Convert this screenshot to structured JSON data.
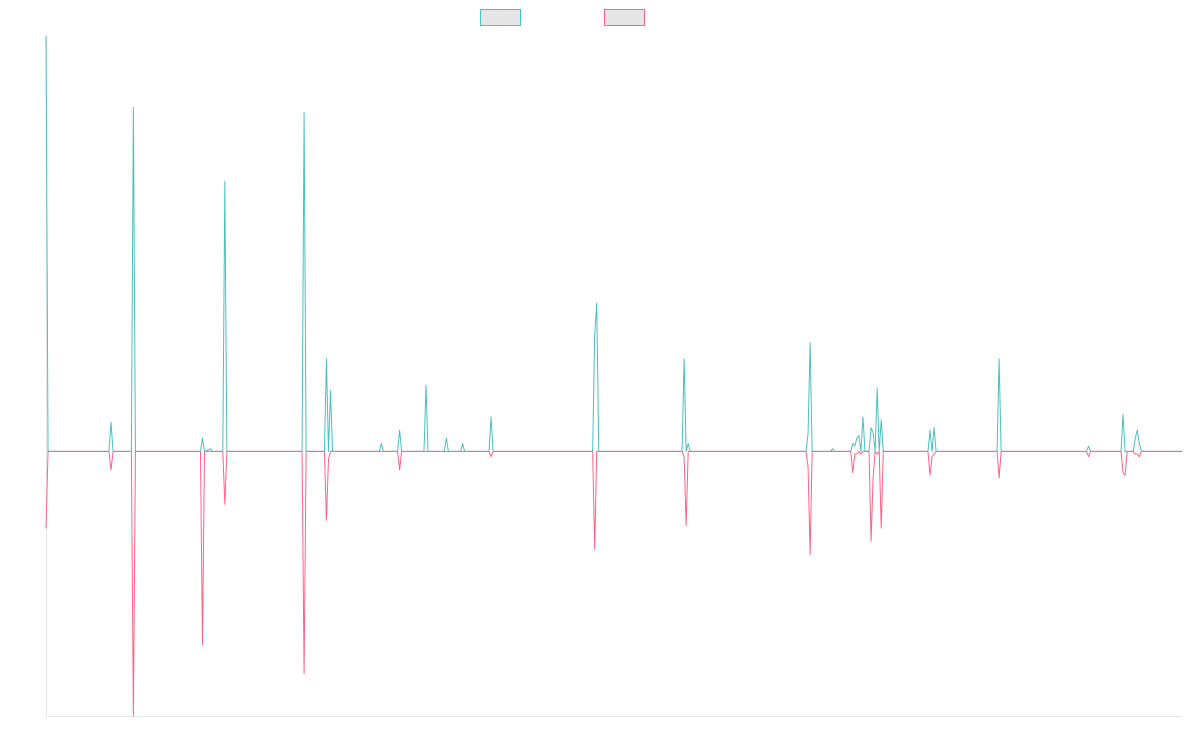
{
  "chart_data": {
    "type": "line",
    "title": "",
    "xlabel": "",
    "ylabel": "",
    "grid": false,
    "legend_placement": "top-center",
    "colors": {
      "teal": "#4bc0c0",
      "pink": "#ff6384",
      "legend_fill": "#e6e6e6",
      "axis": "#e6e6e6"
    },
    "x": [
      0,
      1,
      2,
      3,
      4,
      5,
      6,
      7,
      8,
      9,
      10,
      11,
      12,
      13,
      14,
      15,
      16,
      17,
      18,
      19,
      20,
      21,
      22,
      23,
      24,
      25,
      26,
      27,
      28,
      29,
      30,
      31,
      32,
      33,
      34,
      35,
      36,
      37,
      38,
      39,
      40,
      41,
      42,
      43,
      44,
      45,
      46,
      47,
      48,
      49,
      50,
      51,
      52,
      53,
      54,
      55,
      56,
      57,
      58,
      59,
      60,
      61,
      62,
      63,
      64,
      65,
      66,
      67,
      68,
      69,
      70,
      71,
      72,
      73,
      74,
      75,
      76,
      77,
      78,
      79,
      80,
      81,
      82,
      83,
      84,
      85,
      86,
      87,
      88,
      89,
      90,
      91,
      92,
      93,
      94,
      95,
      96,
      97,
      98,
      99,
      100,
      101,
      102,
      103,
      104,
      105,
      106,
      107,
      108,
      109,
      110,
      111,
      112,
      113,
      114,
      115,
      116,
      117,
      118,
      119,
      120,
      121,
      122,
      123,
      124,
      125,
      126,
      127,
      128,
      129,
      130,
      131,
      132,
      133,
      134,
      135,
      136,
      137,
      138,
      139,
      140,
      141,
      142,
      143,
      144,
      145,
      146,
      147,
      148,
      149,
      150,
      151,
      152,
      153,
      154,
      155,
      156,
      157,
      158,
      159,
      160,
      161,
      162,
      163,
      164,
      165,
      166,
      167,
      168,
      169,
      170,
      171,
      172,
      173,
      174,
      175,
      176,
      177,
      178,
      179,
      180,
      181,
      182,
      183,
      184,
      185,
      186,
      187,
      188,
      189,
      190,
      191,
      192,
      193,
      194,
      195,
      196,
      197,
      198,
      199,
      200,
      201,
      202,
      203,
      204,
      205,
      206,
      207,
      208,
      209,
      210,
      211,
      212,
      213,
      214,
      215,
      216,
      217,
      218,
      219,
      220,
      221,
      222,
      223,
      224,
      225,
      226,
      227,
      228,
      229,
      230,
      231,
      232,
      233,
      234,
      235,
      236,
      237,
      238,
      239,
      240,
      241,
      242,
      243,
      244,
      245,
      246,
      247,
      248,
      249,
      250,
      251,
      252,
      253,
      254,
      255,
      256,
      257,
      258,
      259,
      260,
      261,
      262,
      263,
      264,
      265,
      266,
      267,
      268,
      269,
      270,
      271,
      272,
      273,
      274,
      275,
      276,
      277,
      278,
      279,
      280,
      281,
      282,
      283,
      284,
      285,
      286,
      287,
      288,
      289,
      290,
      291,
      292,
      293,
      294,
      295,
      296,
      297,
      298,
      299,
      300,
      301,
      302,
      303,
      304,
      305,
      306,
      307,
      308,
      309,
      310,
      311,
      312,
      313,
      314,
      315,
      316,
      317,
      318,
      319,
      320,
      321,
      322,
      323,
      324,
      325,
      326,
      327,
      328,
      329,
      330,
      331,
      332,
      333,
      334,
      335,
      336,
      337,
      338,
      339,
      340,
      341,
      342,
      343,
      344,
      345,
      346,
      347,
      348,
      349,
      350,
      351,
      352,
      353,
      354,
      355,
      356,
      357,
      358,
      359,
      360,
      361,
      362,
      363,
      364,
      365,
      366,
      367,
      368,
      369,
      370,
      371,
      372,
      373,
      374,
      375,
      376,
      377,
      378,
      379,
      380,
      381,
      382,
      383,
      384,
      385,
      386,
      387,
      388,
      389,
      390,
      391,
      392,
      393,
      394,
      395,
      396,
      397,
      398,
      399,
      400,
      401,
      402,
      403,
      404,
      405,
      406,
      407,
      408,
      409,
      410,
      411,
      412,
      413,
      414,
      415,
      416,
      417,
      418,
      419,
      420,
      421,
      422,
      423,
      424,
      425,
      426,
      427,
      428,
      429,
      430,
      431,
      432,
      433,
      434,
      435,
      436,
      437,
      438,
      439,
      440,
      441,
      442,
      443,
      444,
      445,
      446,
      447,
      448,
      449,
      450,
      451,
      452,
      453,
      454,
      455,
      456,
      457,
      458,
      459,
      460,
      461,
      462,
      463,
      464,
      465,
      466,
      467,
      468,
      469,
      470,
      471,
      472,
      473,
      474,
      475,
      476,
      477,
      478,
      479,
      480,
      481,
      482,
      483,
      484,
      485,
      486,
      487,
      488,
      489,
      490,
      491,
      492,
      493,
      494,
      495,
      496,
      497,
      498,
      499,
      500,
      501,
      502,
      503,
      504,
      505,
      506,
      507,
      508,
      509,
      510,
      511,
      512,
      513,
      514,
      515,
      516,
      517,
      518,
      519,
      520,
      521,
      522,
      523,
      524,
      525,
      526,
      527,
      528,
      529,
      530,
      531,
      532,
      533,
      534,
      535,
      536,
      537,
      538,
      539,
      540,
      541,
      542,
      543,
      544,
      545,
      546,
      547,
      548,
      549,
      550,
      551,
      552,
      553,
      554,
      555,
      556,
      557,
      558,
      559
    ],
    "xlim": [
      0,
      559
    ],
    "ylim": [
      -1.0,
      1.57
    ],
    "series": [
      {
        "color": "#4bc0c0",
        "points": [
          [
            0,
            1.57
          ],
          [
            1,
            0
          ],
          [
            9,
            0
          ],
          [
            31,
            0
          ],
          [
            32,
            0.11
          ],
          [
            33,
            0
          ],
          [
            42,
            0
          ],
          [
            43,
            1.3
          ],
          [
            44,
            0
          ],
          [
            76,
            0
          ],
          [
            77,
            0.05
          ],
          [
            78,
            0
          ],
          [
            81,
            0.01
          ],
          [
            82,
            0
          ],
          [
            87,
            0
          ],
          [
            88,
            1.02
          ],
          [
            89,
            0
          ],
          [
            126,
            0
          ],
          [
            127,
            1.28
          ],
          [
            128,
            0
          ],
          [
            137,
            0
          ],
          [
            138,
            0.35
          ],
          [
            139,
            0
          ],
          [
            140,
            0.23
          ],
          [
            141,
            0
          ],
          [
            164,
            0
          ],
          [
            165,
            0.03
          ],
          [
            166,
            0
          ],
          [
            173,
            0
          ],
          [
            174,
            0.08
          ],
          [
            175,
            0
          ],
          [
            186,
            0
          ],
          [
            187,
            0.25
          ],
          [
            188,
            0
          ],
          [
            196,
            0
          ],
          [
            197,
            0.05
          ],
          [
            198,
            0
          ],
          [
            204,
            0
          ],
          [
            205,
            0.03
          ],
          [
            206,
            0
          ],
          [
            218,
            0
          ],
          [
            219,
            0.13
          ],
          [
            220,
            0
          ],
          [
            269,
            0
          ],
          [
            270,
            0.44
          ],
          [
            271,
            0.56
          ],
          [
            272,
            0
          ],
          [
            313,
            0
          ],
          [
            314,
            0.35
          ],
          [
            315,
            0
          ],
          [
            316,
            0.03
          ],
          [
            317,
            0
          ],
          [
            374,
            0
          ],
          [
            375,
            0.07
          ],
          [
            376,
            0.41
          ],
          [
            377,
            0
          ],
          [
            386,
            0
          ],
          [
            387,
            0.01
          ],
          [
            388,
            0
          ],
          [
            396,
            0
          ],
          [
            397,
            0.03
          ],
          [
            398,
            0.02
          ],
          [
            399,
            0.05
          ],
          [
            400,
            0.06
          ],
          [
            401,
            0
          ],
          [
            402,
            0.13
          ],
          [
            403,
            0
          ],
          [
            405,
            0
          ],
          [
            406,
            0.09
          ],
          [
            407,
            0.07
          ],
          [
            408,
            0
          ],
          [
            409,
            0.24
          ],
          [
            410,
            0
          ],
          [
            411,
            0.12
          ],
          [
            412,
            0
          ],
          [
            434,
            0
          ],
          [
            435,
            0.08
          ],
          [
            436,
            0
          ],
          [
            437,
            0.09
          ],
          [
            438,
            0
          ],
          [
            468,
            0
          ],
          [
            469,
            0.35
          ],
          [
            470,
            0
          ],
          [
            512,
            0
          ],
          [
            513,
            0.02
          ],
          [
            514,
            0
          ],
          [
            529,
            0
          ],
          [
            530,
            0.14
          ],
          [
            531,
            0
          ],
          [
            535,
            0
          ],
          [
            536,
            0.05
          ],
          [
            537,
            0.08
          ],
          [
            538,
            0.03
          ],
          [
            539,
            0
          ],
          [
            559,
            0
          ]
        ]
      },
      {
        "color": "#ff6384",
        "points": [
          [
            0,
            -0.29
          ],
          [
            1,
            0
          ],
          [
            9,
            0
          ],
          [
            31,
            0
          ],
          [
            32,
            -0.07
          ],
          [
            33,
            0
          ],
          [
            42,
            0
          ],
          [
            43,
            -1.0
          ],
          [
            44,
            0
          ],
          [
            76,
            0
          ],
          [
            77,
            -0.73
          ],
          [
            78,
            0
          ],
          [
            87,
            0
          ],
          [
            88,
            -0.2
          ],
          [
            89,
            0
          ],
          [
            126,
            0
          ],
          [
            127,
            -0.84
          ],
          [
            128,
            0
          ],
          [
            137,
            0
          ],
          [
            138,
            -0.26
          ],
          [
            139,
            -0.03
          ],
          [
            140,
            0
          ],
          [
            173,
            0
          ],
          [
            174,
            -0.07
          ],
          [
            175,
            0
          ],
          [
            218,
            0
          ],
          [
            219,
            -0.02
          ],
          [
            220,
            0
          ],
          [
            269,
            0
          ],
          [
            270,
            -0.37
          ],
          [
            271,
            0
          ],
          [
            313,
            0
          ],
          [
            314,
            -0.02
          ],
          [
            315,
            -0.28
          ],
          [
            316,
            0
          ],
          [
            374,
            0
          ],
          [
            375,
            -0.06
          ],
          [
            376,
            -0.39
          ],
          [
            377,
            0
          ],
          [
            396,
            0
          ],
          [
            397,
            -0.08
          ],
          [
            398,
            -0.01
          ],
          [
            399,
            -0.01
          ],
          [
            400,
            0
          ],
          [
            401,
            -0.01
          ],
          [
            402,
            0
          ],
          [
            405,
            0
          ],
          [
            406,
            -0.34
          ],
          [
            407,
            -0.1
          ],
          [
            408,
            0
          ],
          [
            409,
            -0.01
          ],
          [
            410,
            0
          ],
          [
            411,
            -0.29
          ],
          [
            412,
            0
          ],
          [
            434,
            0
          ],
          [
            435,
            -0.09
          ],
          [
            436,
            -0.02
          ],
          [
            437,
            -0.01
          ],
          [
            438,
            0
          ],
          [
            468,
            0
          ],
          [
            469,
            -0.1
          ],
          [
            470,
            0
          ],
          [
            512,
            0
          ],
          [
            513,
            -0.02
          ],
          [
            514,
            0
          ],
          [
            529,
            0
          ],
          [
            530,
            -0.08
          ],
          [
            531,
            -0.09
          ],
          [
            532,
            0
          ],
          [
            535,
            0
          ],
          [
            536,
            -0.01
          ],
          [
            537,
            -0.01
          ],
          [
            538,
            -0.02
          ],
          [
            539,
            0
          ],
          [
            559,
            0
          ]
        ]
      }
    ]
  }
}
